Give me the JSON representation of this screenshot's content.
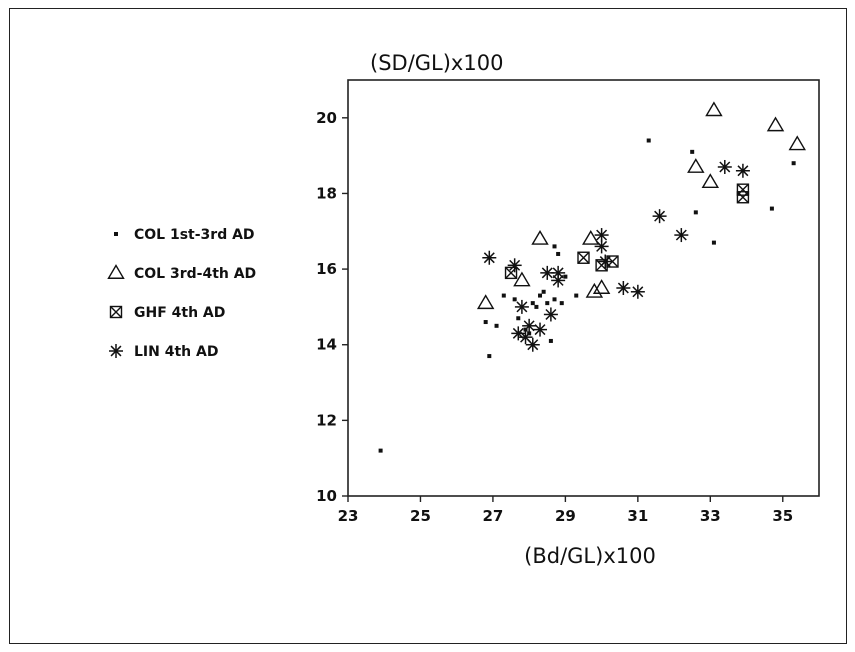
{
  "chart_data": {
    "type": "scatter",
    "xlabel": "(Bd/GL)x100",
    "ylabel": "(SD/GL)x100",
    "xlim": [
      23,
      36
    ],
    "ylim": [
      10,
      21
    ],
    "xticks": [
      23,
      25,
      27,
      29,
      31,
      33,
      35
    ],
    "yticks": [
      10,
      12,
      14,
      16,
      18,
      20
    ],
    "legend_position": "left",
    "series": [
      {
        "name": "COL 1st-3rd AD",
        "marker": "dot",
        "points": [
          [
            23.9,
            11.2
          ],
          [
            26.8,
            14.6
          ],
          [
            26.9,
            13.7
          ],
          [
            27.1,
            14.5
          ],
          [
            27.3,
            15.3
          ],
          [
            27.6,
            15.2
          ],
          [
            27.7,
            14.7
          ],
          [
            27.9,
            14.4
          ],
          [
            28.0,
            14.3
          ],
          [
            28.1,
            15.1
          ],
          [
            28.2,
            15.0
          ],
          [
            28.3,
            15.3
          ],
          [
            28.4,
            15.4
          ],
          [
            28.5,
            15.1
          ],
          [
            28.6,
            14.1
          ],
          [
            28.7,
            15.2
          ],
          [
            28.7,
            16.6
          ],
          [
            28.8,
            16.4
          ],
          [
            28.9,
            15.1
          ],
          [
            29.0,
            15.8
          ],
          [
            29.3,
            15.3
          ],
          [
            31.3,
            19.4
          ],
          [
            32.5,
            19.1
          ],
          [
            32.6,
            17.5
          ],
          [
            33.1,
            16.7
          ],
          [
            34.7,
            17.6
          ],
          [
            35.3,
            18.8
          ]
        ]
      },
      {
        "name": "COL 3rd-4th AD",
        "marker": "triangle",
        "points": [
          [
            26.8,
            15.1
          ],
          [
            27.8,
            15.7
          ],
          [
            28.3,
            16.8
          ],
          [
            29.7,
            16.8
          ],
          [
            29.8,
            15.4
          ],
          [
            30.0,
            15.5
          ],
          [
            32.6,
            18.7
          ],
          [
            33.0,
            18.3
          ],
          [
            33.1,
            20.2
          ],
          [
            34.8,
            19.8
          ],
          [
            35.4,
            19.3
          ]
        ]
      },
      {
        "name": "GHF 4th AD",
        "marker": "boxed-x",
        "points": [
          [
            27.5,
            15.9
          ],
          [
            29.5,
            16.3
          ],
          [
            30.0,
            16.1
          ],
          [
            30.3,
            16.2
          ],
          [
            33.9,
            18.1
          ],
          [
            33.9,
            17.9
          ]
        ]
      },
      {
        "name": "LIN 4th AD",
        "marker": "asterisk",
        "points": [
          [
            26.9,
            16.3
          ],
          [
            27.6,
            16.1
          ],
          [
            27.7,
            14.3
          ],
          [
            27.9,
            14.2
          ],
          [
            27.8,
            15.0
          ],
          [
            28.0,
            14.5
          ],
          [
            28.1,
            14.0
          ],
          [
            28.3,
            14.4
          ],
          [
            28.5,
            15.9
          ],
          [
            28.6,
            14.8
          ],
          [
            28.8,
            15.7
          ],
          [
            28.8,
            15.9
          ],
          [
            30.0,
            16.9
          ],
          [
            30.0,
            16.6
          ],
          [
            30.1,
            16.2
          ],
          [
            30.6,
            15.5
          ],
          [
            31.0,
            15.4
          ],
          [
            31.6,
            17.4
          ],
          [
            32.2,
            16.9
          ],
          [
            33.4,
            18.7
          ],
          [
            33.9,
            18.6
          ]
        ]
      }
    ]
  }
}
